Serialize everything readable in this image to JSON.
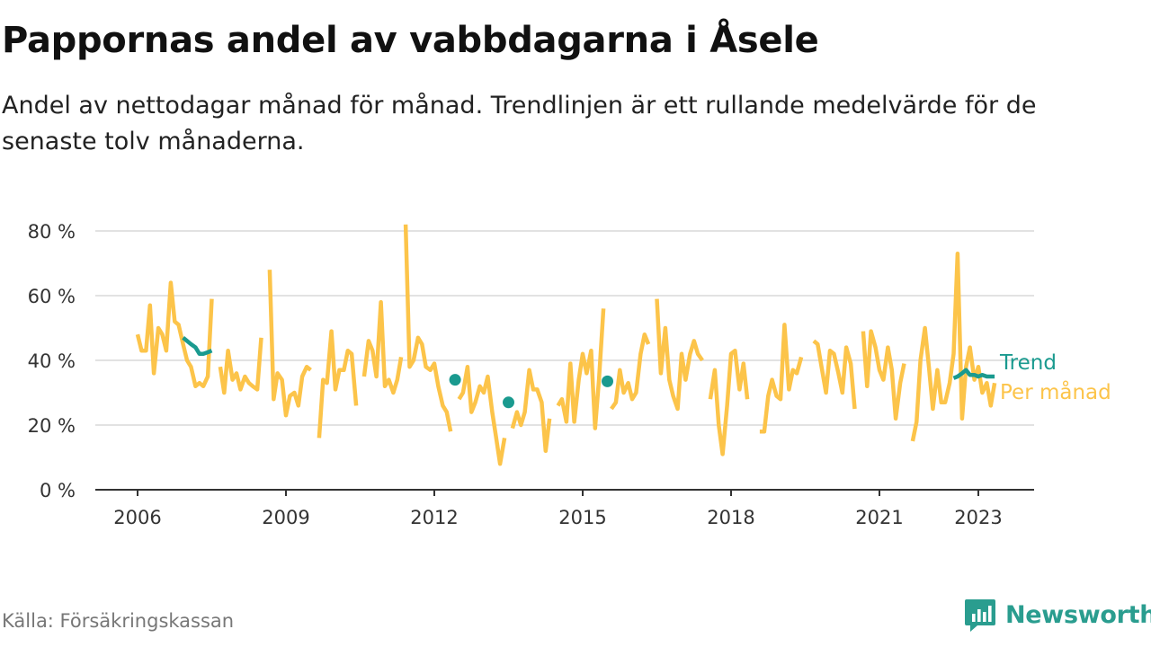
{
  "title": "Pappornas andel av vabbdagarna i Åsele",
  "subtitle": "Andel av nettodagar månad för månad. Trendlinjen är ett rullande medelvärde för de senaste tolv månaderna.",
  "source": "Källa: Försäkringskassan",
  "brand": "Newsworthy",
  "colors": {
    "monthly": "#fcc44a",
    "trend": "#1a9a8f",
    "grid": "#d9d9d9",
    "axis": "#333333"
  },
  "chart_data": {
    "type": "line",
    "ylim": [
      0,
      80
    ],
    "yticks": [
      0,
      20,
      40,
      60,
      80
    ],
    "ytick_labels": [
      "0 %",
      "20 %",
      "40 %",
      "60 %",
      "80 %"
    ],
    "xlim": [
      2005.1,
      2024.2
    ],
    "xticks": [
      2006,
      2009,
      2012,
      2015,
      2018,
      2021,
      2023
    ],
    "xtick_labels": [
      "2006",
      "2009",
      "2012",
      "2015",
      "2018",
      "2021",
      "2023"
    ],
    "grid": true,
    "series": [
      {
        "name": "Per månad",
        "color": "#fcc44a",
        "segments": [
          [
            [
              2006.0,
              48
            ],
            [
              2006.08,
              43
            ],
            [
              2006.17,
              43
            ],
            [
              2006.25,
              57
            ],
            [
              2006.33,
              36
            ],
            [
              2006.42,
              50
            ],
            [
              2006.5,
              48
            ],
            [
              2006.58,
              43
            ],
            [
              2006.67,
              64
            ],
            [
              2006.75,
              52
            ],
            [
              2006.83,
              51
            ],
            [
              2006.92,
              45
            ],
            [
              2007.0,
              40
            ],
            [
              2007.08,
              38
            ],
            [
              2007.17,
              32
            ],
            [
              2007.25,
              33
            ],
            [
              2007.33,
              32
            ],
            [
              2007.42,
              35
            ],
            [
              2007.5,
              59
            ]
          ],
          [
            [
              2007.67,
              38
            ],
            [
              2007.75,
              30
            ],
            [
              2007.83,
              43
            ],
            [
              2007.92,
              34
            ],
            [
              2008.0,
              36
            ],
            [
              2008.08,
              31
            ],
            [
              2008.17,
              35
            ],
            [
              2008.25,
              33
            ],
            [
              2008.33,
              32
            ],
            [
              2008.42,
              31
            ],
            [
              2008.5,
              47
            ]
          ],
          [
            [
              2008.67,
              68
            ],
            [
              2008.75,
              28
            ],
            [
              2008.83,
              36
            ],
            [
              2008.92,
              34
            ],
            [
              2009.0,
              23
            ],
            [
              2009.08,
              29
            ],
            [
              2009.17,
              30
            ],
            [
              2009.25,
              26
            ],
            [
              2009.33,
              35
            ],
            [
              2009.42,
              38
            ],
            [
              2009.5,
              37
            ]
          ],
          [
            [
              2009.67,
              16
            ],
            [
              2009.75,
              34
            ],
            [
              2009.83,
              33
            ],
            [
              2009.92,
              49
            ],
            [
              2010.0,
              31
            ],
            [
              2010.08,
              37
            ],
            [
              2010.17,
              37
            ],
            [
              2010.25,
              43
            ],
            [
              2010.33,
              42
            ],
            [
              2010.42,
              26
            ]
          ],
          [
            [
              2010.58,
              35
            ],
            [
              2010.67,
              46
            ],
            [
              2010.75,
              43
            ],
            [
              2010.83,
              35
            ],
            [
              2010.92,
              58
            ],
            [
              2011.0,
              32
            ],
            [
              2011.08,
              34
            ],
            [
              2011.17,
              30
            ],
            [
              2011.25,
              34
            ],
            [
              2011.33,
              41
            ]
          ],
          [
            [
              2011.42,
              82
            ],
            [
              2011.5,
              38
            ],
            [
              2011.58,
              40
            ],
            [
              2011.67,
              47
            ],
            [
              2011.75,
              45
            ],
            [
              2011.83,
              38
            ],
            [
              2011.92,
              37
            ],
            [
              2012.0,
              39
            ],
            [
              2012.08,
              32
            ],
            [
              2012.17,
              26
            ],
            [
              2012.25,
              24
            ],
            [
              2012.33,
              18
            ]
          ],
          [
            [
              2012.5,
              28
            ],
            [
              2012.58,
              30
            ],
            [
              2012.67,
              38
            ],
            [
              2012.75,
              24
            ],
            [
              2012.83,
              27
            ],
            [
              2012.92,
              32
            ],
            [
              2013.0,
              30
            ],
            [
              2013.08,
              35
            ],
            [
              2013.17,
              24
            ],
            [
              2013.25,
              16
            ],
            [
              2013.33,
              8
            ],
            [
              2013.42,
              16
            ]
          ],
          [
            [
              2013.58,
              19
            ],
            [
              2013.67,
              24
            ],
            [
              2013.75,
              20
            ],
            [
              2013.83,
              24
            ],
            [
              2013.92,
              37
            ],
            [
              2014.0,
              31
            ],
            [
              2014.08,
              31
            ],
            [
              2014.17,
              27
            ],
            [
              2014.25,
              12
            ],
            [
              2014.33,
              22
            ]
          ],
          [
            [
              2014.5,
              26
            ],
            [
              2014.58,
              28
            ],
            [
              2014.67,
              21
            ],
            [
              2014.75,
              39
            ],
            [
              2014.83,
              21
            ],
            [
              2014.92,
              34
            ],
            [
              2015.0,
              42
            ],
            [
              2015.08,
              36
            ],
            [
              2015.17,
              43
            ],
            [
              2015.25,
              19
            ],
            [
              2015.33,
              34
            ],
            [
              2015.42,
              56
            ]
          ],
          [
            [
              2015.58,
              25
            ],
            [
              2015.67,
              27
            ],
            [
              2015.75,
              37
            ],
            [
              2015.83,
              30
            ],
            [
              2015.92,
              33
            ],
            [
              2016.0,
              28
            ],
            [
              2016.08,
              30
            ],
            [
              2016.17,
              42
            ],
            [
              2016.25,
              48
            ],
            [
              2016.33,
              45
            ]
          ],
          [
            [
              2016.5,
              59
            ],
            [
              2016.58,
              36
            ],
            [
              2016.67,
              50
            ],
            [
              2016.75,
              34
            ],
            [
              2016.83,
              29
            ],
            [
              2016.92,
              25
            ],
            [
              2017.0,
              42
            ],
            [
              2017.08,
              34
            ],
            [
              2017.17,
              42
            ],
            [
              2017.25,
              46
            ],
            [
              2017.33,
              42
            ],
            [
              2017.42,
              40
            ]
          ],
          [
            [
              2017.58,
              28
            ],
            [
              2017.67,
              37
            ],
            [
              2017.75,
              20
            ],
            [
              2017.83,
              11
            ],
            [
              2017.92,
              26
            ],
            [
              2018.0,
              42
            ],
            [
              2018.08,
              43
            ],
            [
              2018.17,
              31
            ],
            [
              2018.25,
              39
            ],
            [
              2018.33,
              28
            ]
          ],
          [
            [
              2018.58,
              18
            ],
            [
              2018.67,
              18
            ],
            [
              2018.75,
              29
            ],
            [
              2018.83,
              34
            ],
            [
              2018.92,
              29
            ],
            [
              2019.0,
              28
            ],
            [
              2019.08,
              51
            ],
            [
              2019.17,
              31
            ],
            [
              2019.25,
              37
            ],
            [
              2019.33,
              36
            ],
            [
              2019.42,
              41
            ]
          ],
          [
            [
              2019.67,
              46
            ],
            [
              2019.75,
              45
            ],
            [
              2019.83,
              38
            ],
            [
              2019.92,
              30
            ],
            [
              2020.0,
              43
            ],
            [
              2020.08,
              42
            ],
            [
              2020.17,
              36
            ],
            [
              2020.25,
              30
            ],
            [
              2020.33,
              44
            ],
            [
              2020.42,
              39
            ],
            [
              2020.5,
              25
            ]
          ],
          [
            [
              2020.67,
              49
            ],
            [
              2020.75,
              32
            ],
            [
              2020.83,
              49
            ],
            [
              2020.92,
              44
            ],
            [
              2021.0,
              37
            ],
            [
              2021.08,
              34
            ],
            [
              2021.17,
              44
            ],
            [
              2021.25,
              37
            ],
            [
              2021.33,
              22
            ],
            [
              2021.42,
              33
            ],
            [
              2021.5,
              39
            ]
          ],
          [
            [
              2021.67,
              15
            ],
            [
              2021.75,
              21
            ],
            [
              2021.83,
              40
            ],
            [
              2021.92,
              50
            ],
            [
              2022.0,
              38
            ],
            [
              2022.08,
              25
            ],
            [
              2022.17,
              37
            ],
            [
              2022.25,
              27
            ],
            [
              2022.33,
              27
            ],
            [
              2022.42,
              33
            ],
            [
              2022.5,
              42
            ],
            [
              2022.58,
              73
            ],
            [
              2022.67,
              22
            ],
            [
              2022.75,
              38
            ],
            [
              2022.83,
              44
            ],
            [
              2022.92,
              34
            ],
            [
              2023.0,
              38
            ],
            [
              2023.08,
              30
            ],
            [
              2023.17,
              33
            ],
            [
              2023.25,
              26
            ],
            [
              2023.33,
              33
            ]
          ]
        ]
      },
      {
        "name": "Trend",
        "color": "#1a9a8f",
        "segments": [
          [
            [
              2006.92,
              47
            ],
            [
              2007.0,
              46
            ],
            [
              2007.08,
              45
            ],
            [
              2007.17,
              44
            ],
            [
              2007.25,
              42
            ],
            [
              2007.33,
              42
            ],
            [
              2007.42,
              42.5
            ],
            [
              2007.5,
              43
            ]
          ],
          [
            [
              2022.5,
              34.5
            ],
            [
              2022.58,
              35
            ],
            [
              2022.67,
              36
            ],
            [
              2022.75,
              37
            ],
            [
              2022.83,
              35.5
            ],
            [
              2022.92,
              35.5
            ],
            [
              2023.0,
              35
            ],
            [
              2023.08,
              35.5
            ],
            [
              2023.17,
              35
            ],
            [
              2023.25,
              35
            ],
            [
              2023.33,
              35
            ]
          ]
        ],
        "points": [
          [
            2012.42,
            34
          ],
          [
            2013.5,
            27
          ],
          [
            2015.5,
            33.5
          ]
        ]
      }
    ],
    "legend": [
      "Trend",
      "Per månad"
    ],
    "legend_placement": "right"
  }
}
